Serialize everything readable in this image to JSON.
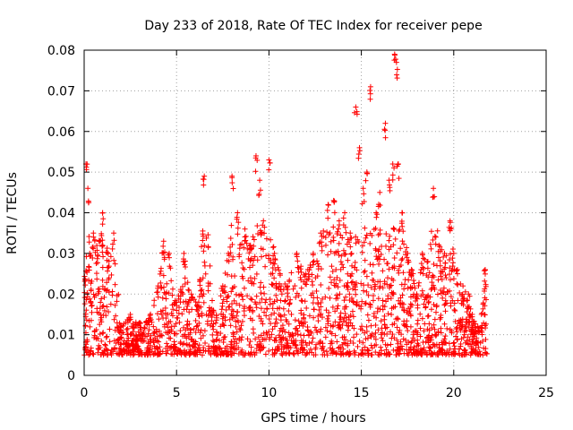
{
  "chart_data": {
    "type": "scatter",
    "title": "Day 233 of 2018, Rate Of TEC Index for receiver pepe",
    "xlabel": "GPS time / hours",
    "ylabel": "ROTI / TECUs",
    "xlim": [
      0,
      25
    ],
    "ylim": [
      0,
      0.08
    ],
    "x_ticks": [
      "0",
      "5",
      "10",
      "15",
      "20",
      "25"
    ],
    "x_tick_values": [
      0,
      5,
      10,
      15,
      20,
      25
    ],
    "y_ticks": [
      "0",
      "0.01",
      "0.02",
      "0.03",
      "0.04",
      "0.05",
      "0.06",
      "0.07",
      "0.08"
    ],
    "y_tick_values": [
      0,
      0.01,
      0.02,
      0.03,
      0.04,
      0.05,
      0.06,
      0.07,
      0.08
    ],
    "grid": true,
    "marker": "+",
    "color": "#ff0000",
    "x_range_of_data": [
      0,
      21.8
    ],
    "series": [
      {
        "name": "ROTI",
        "x": [
          0.1,
          0.2,
          0.3,
          0.5,
          0.8,
          1.0,
          1.3,
          1.6,
          2.0,
          2.5,
          3.0,
          3.5,
          4.0,
          4.3,
          4.6,
          5.0,
          5.4,
          5.8,
          6.2,
          6.5,
          7.0,
          7.5,
          7.8,
          8.0,
          8.3,
          8.7,
          9.0,
          9.3,
          9.5,
          9.7,
          10.0,
          10.3,
          10.6,
          11.0,
          11.5,
          12.0,
          12.4,
          12.8,
          13.2,
          13.5,
          13.8,
          14.1,
          14.4,
          14.7,
          14.9,
          15.1,
          15.3,
          15.5,
          15.8,
          16.0,
          16.3,
          16.5,
          16.7,
          16.8,
          16.9,
          17.0,
          17.2,
          17.5,
          17.8,
          18.0,
          18.3,
          18.6,
          18.9,
          19.2,
          19.5,
          19.8,
          20.0,
          20.2,
          20.5,
          20.8,
          21.0,
          21.3,
          21.5,
          21.7
        ],
        "y": [
          0.052,
          0.046,
          0.03,
          0.035,
          0.033,
          0.04,
          0.03,
          0.035,
          0.012,
          0.015,
          0.013,
          0.014,
          0.022,
          0.033,
          0.03,
          0.018,
          0.03,
          0.02,
          0.018,
          0.049,
          0.016,
          0.022,
          0.03,
          0.049,
          0.04,
          0.036,
          0.032,
          0.054,
          0.048,
          0.038,
          0.053,
          0.03,
          0.025,
          0.022,
          0.03,
          0.025,
          0.03,
          0.035,
          0.042,
          0.043,
          0.038,
          0.04,
          0.035,
          0.066,
          0.056,
          0.046,
          0.05,
          0.071,
          0.04,
          0.045,
          0.062,
          0.048,
          0.052,
          0.079,
          0.077,
          0.052,
          0.04,
          0.03,
          0.025,
          0.02,
          0.03,
          0.028,
          0.046,
          0.032,
          0.03,
          0.038,
          0.03,
          0.026,
          0.022,
          0.02,
          0.015,
          0.012,
          0.015,
          0.026
        ]
      }
    ],
    "noise_band": {
      "note": "dense cloud of points between these ROTI levels across the whole day",
      "low": 0.005,
      "high": 0.025
    }
  }
}
